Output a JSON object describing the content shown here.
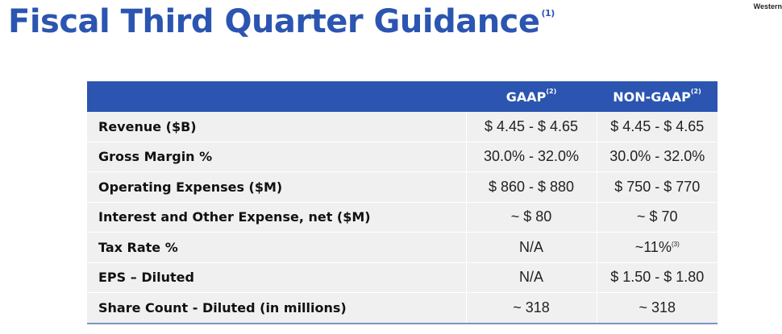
{
  "title": "Fiscal Third Quarter Guidance",
  "title_note": "(1)",
  "brand": "Western",
  "table": {
    "headers": [
      {
        "label": "GAAP",
        "note": "(2)"
      },
      {
        "label": "NON-GAAP",
        "note": "(2)"
      }
    ],
    "rows": [
      {
        "label": "Revenue ($B)",
        "gaap": "$ 4.45 - $ 4.65",
        "non_gaap": "$ 4.45 - $ 4.65",
        "non_gaap_note": ""
      },
      {
        "label": "Gross Margin %",
        "gaap": "30.0% - 32.0%",
        "non_gaap": "30.0% - 32.0%",
        "non_gaap_note": ""
      },
      {
        "label": "Operating Expenses ($M)",
        "gaap": "$ 860 - $ 880",
        "non_gaap": "$ 750 - $ 770",
        "non_gaap_note": ""
      },
      {
        "label": "Interest and Other Expense, net ($M)",
        "gaap": "~ $ 80",
        "non_gaap": "~ $ 70",
        "non_gaap_note": ""
      },
      {
        "label": "Tax Rate %",
        "gaap": "N/A",
        "non_gaap": "~11%",
        "non_gaap_note": "(3)"
      },
      {
        "label": "EPS – Diluted",
        "gaap": "N/A",
        "non_gaap": "$ 1.50 - $ 1.80",
        "non_gaap_note": ""
      },
      {
        "label": "Share Count - Diluted (in millions)",
        "gaap": "~ 318",
        "non_gaap": "~ 318",
        "non_gaap_note": ""
      }
    ]
  },
  "colors": {
    "accent": "#2b55b0",
    "row_background": "#f0f0f0",
    "bottom_rule": "#7d93c4"
  }
}
